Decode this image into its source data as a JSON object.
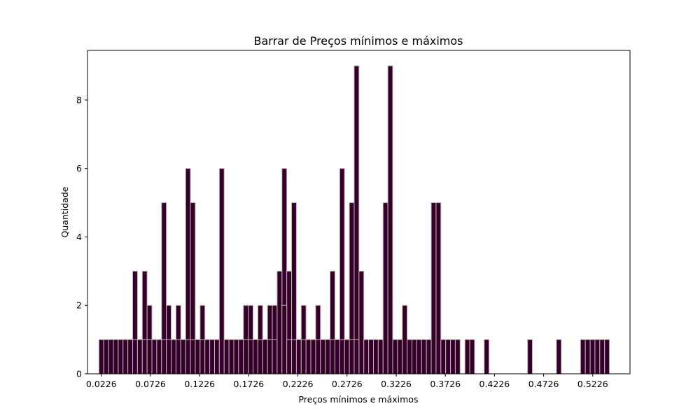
{
  "chart_data": {
    "type": "bar",
    "title": "Barrar de Preços mínimos e máximos",
    "xlabel": "Preços mínimos e máximos",
    "ylabel": "Quantidade",
    "xlim": [
      0.0085,
      0.5605
    ],
    "ylim": [
      0,
      9.45
    ],
    "bin_width": 0.0049,
    "grid": false,
    "bar_color": "#33002a",
    "edge_color": "#c8b4b4",
    "x_ticks": [
      "0.0226",
      "0.0726",
      "0.1226",
      "0.1726",
      "0.2226",
      "0.2726",
      "0.3226",
      "0.3726",
      "0.4226",
      "0.4726",
      "0.5226"
    ],
    "y_ticks": [
      0,
      2,
      4,
      6,
      8
    ],
    "series": [
      {
        "x": [
          0.0226,
          0.0275,
          0.0324,
          0.0373,
          0.0422,
          0.0471,
          0.052,
          0.0569,
          0.0618,
          0.0667,
          0.0716,
          0.0765,
          0.0814,
          0.0863,
          0.0912,
          0.0961,
          0.101,
          0.1059,
          0.1108,
          0.1157,
          0.1206,
          0.1255,
          0.1304,
          0.1353,
          0.1402,
          0.1451,
          0.15,
          0.1549,
          0.1598,
          0.1647,
          0.1696,
          0.1745,
          0.1794,
          0.1843,
          0.1892,
          0.1941,
          0.199,
          0.2039,
          0.2088,
          0.2137,
          0.2186,
          0.2235,
          0.2284,
          0.2333,
          0.2382,
          0.2431,
          0.248,
          0.2529,
          0.2578,
          0.2627,
          0.2676,
          0.2725,
          0.2774,
          0.2823,
          0.2872,
          0.2921,
          0.297,
          0.3019,
          0.3068,
          0.3117,
          0.3166,
          0.3215,
          0.3264,
          0.3313,
          0.3362,
          0.3411,
          0.346,
          0.3509,
          0.3558,
          0.3607,
          0.3656,
          0.3705,
          0.3754,
          0.3803,
          0.3852,
          0.395,
          0.3999,
          0.4146,
          0.4587,
          0.4881,
          0.5126,
          0.5175,
          0.5224,
          0.5273,
          0.5322,
          0.5371
        ],
        "values": [
          1,
          1,
          1,
          1,
          1,
          1,
          1,
          3,
          1,
          3,
          2,
          1,
          1,
          5,
          2,
          1,
          2,
          1,
          6,
          5,
          1,
          2,
          1,
          1,
          1,
          6,
          1,
          1,
          1,
          1,
          2,
          2,
          1,
          2,
          1,
          2,
          2,
          1,
          6,
          3,
          5,
          1,
          2,
          1,
          1,
          2,
          1,
          1,
          3,
          1,
          6,
          1,
          5,
          9,
          3,
          1,
          1,
          1,
          1,
          5,
          9,
          1,
          1,
          2,
          1,
          1,
          1,
          1,
          1,
          5,
          5,
          1,
          1,
          1,
          1,
          1,
          1,
          1,
          1,
          1,
          1,
          1,
          1,
          1,
          1,
          1
        ]
      },
      {
        "x": [
          0.0422,
          0.0471,
          0.052,
          0.0569,
          0.0618,
          0.0667,
          0.0716,
          0.0765,
          0.0814,
          0.0863,
          0.0912,
          0.0961,
          0.101,
          0.1059,
          0.1108,
          0.1157,
          0.1206,
          0.1255,
          0.1304,
          0.1353
        ],
        "values": [
          1,
          1,
          1,
          1,
          1,
          1,
          1,
          1,
          1,
          1,
          1,
          1,
          1,
          1,
          1,
          1,
          1,
          1,
          1,
          1
        ]
      },
      {
        "x": [
          0.1549,
          0.1598,
          0.1647,
          0.1696,
          0.1745,
          0.1794,
          0.1843,
          0.1892,
          0.1941,
          0.199,
          0.2039,
          0.2088,
          0.2137,
          0.2186,
          0.2235,
          0.2284,
          0.2333,
          0.2382,
          0.2431,
          0.248,
          0.2529,
          0.2578,
          0.2627,
          0.2676,
          0.2725,
          0.2774,
          0.2823
        ],
        "values": [
          1,
          1,
          1,
          1,
          1,
          1,
          1,
          1,
          1,
          1,
          3,
          2,
          1,
          1,
          1,
          1,
          1,
          1,
          1,
          1,
          1,
          1,
          1,
          1,
          1,
          1,
          1
        ]
      }
    ]
  }
}
